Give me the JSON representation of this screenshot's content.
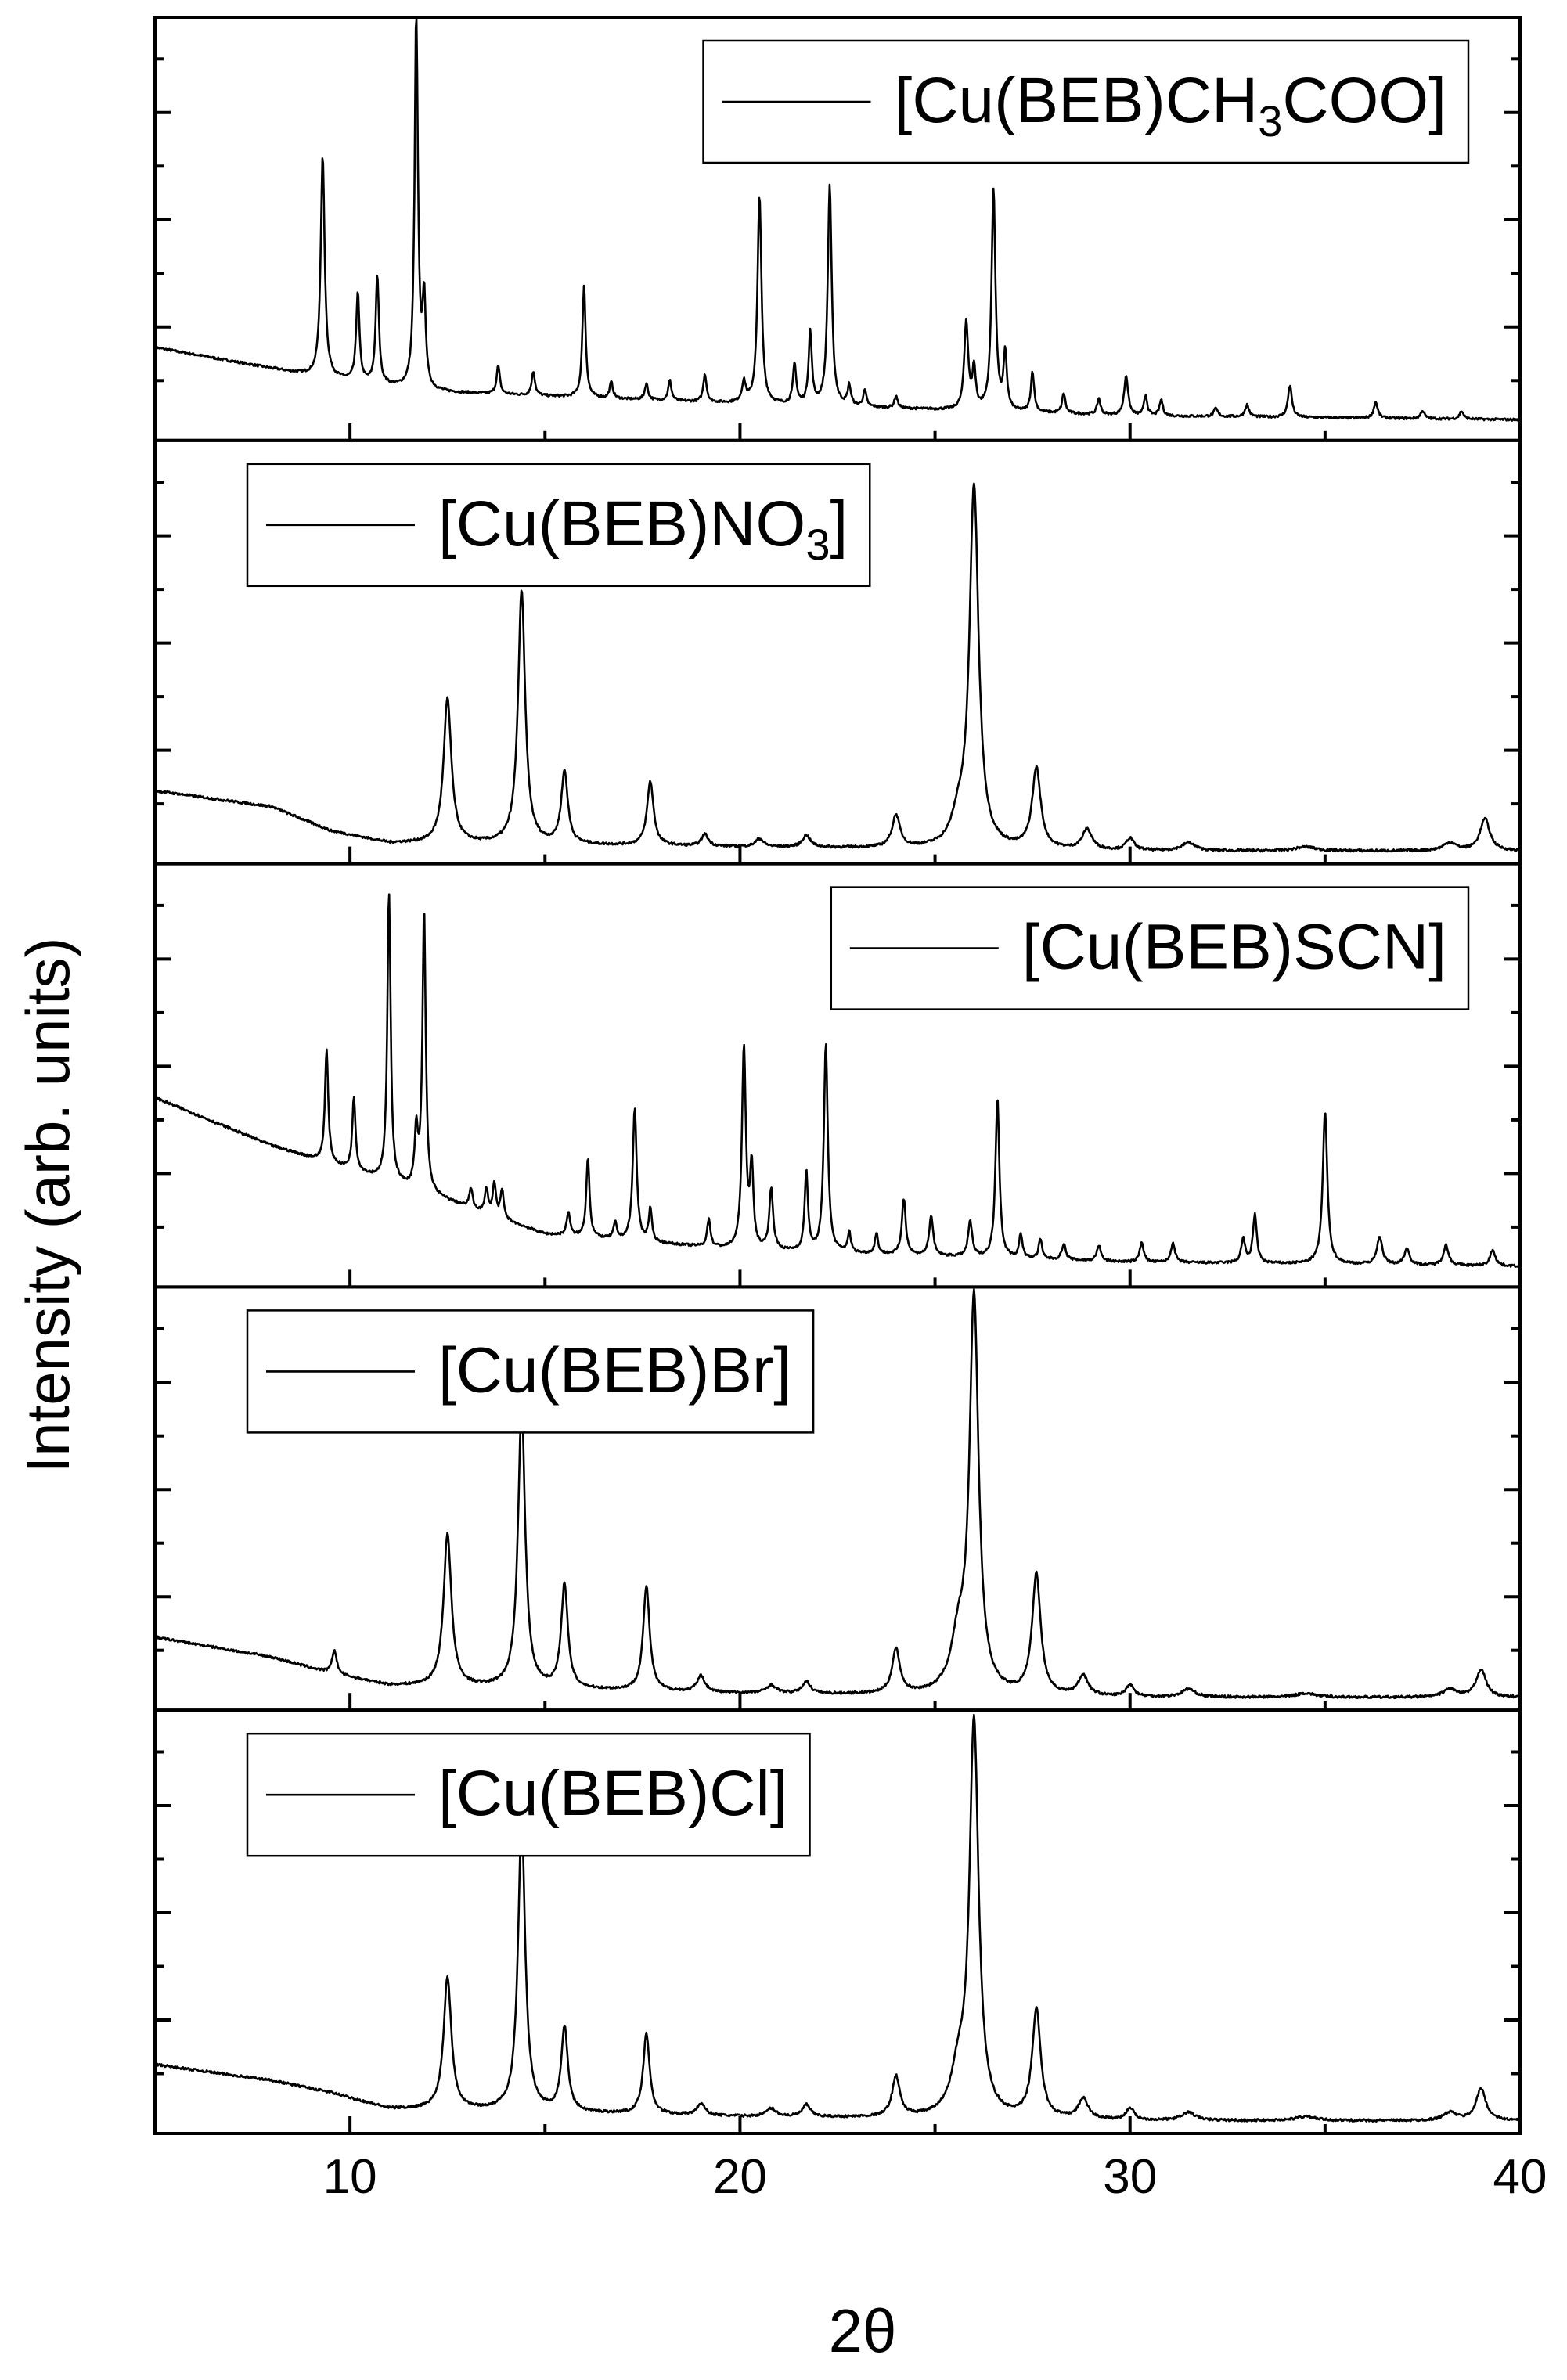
{
  "chart_data": {
    "type": "line",
    "xlabel": "2θ",
    "ylabel": "Intensity (arb. units)",
    "xlim": [
      5,
      40
    ],
    "xticks": [
      10,
      20,
      30,
      40
    ],
    "stacked_panels": true,
    "grid": false,
    "y_tick_labels_shown": false,
    "series": [
      {
        "legend_label": "[Cu(BEB)CH3COO]",
        "legend_parts": [
          "[Cu(BEB)CH",
          "3",
          "COO]"
        ],
        "legend_position": "top-right",
        "baseline": [
          [
            5,
            0.22
          ],
          [
            9,
            0.15
          ],
          [
            12,
            0.11
          ],
          [
            20,
            0.08
          ],
          [
            30,
            0.05
          ],
          [
            40,
            0.04
          ]
        ],
        "peaks": [
          {
            "x": 9.3,
            "h": 0.55,
            "w": 0.06
          },
          {
            "x": 10.2,
            "h": 0.22,
            "w": 0.05
          },
          {
            "x": 10.7,
            "h": 0.27,
            "w": 0.05
          },
          {
            "x": 11.7,
            "h": 0.95,
            "w": 0.05
          },
          {
            "x": 11.9,
            "h": 0.22,
            "w": 0.05
          },
          {
            "x": 13.8,
            "h": 0.07,
            "w": 0.05
          },
          {
            "x": 14.7,
            "h": 0.06,
            "w": 0.05
          },
          {
            "x": 16.0,
            "h": 0.28,
            "w": 0.05
          },
          {
            "x": 16.7,
            "h": 0.04,
            "w": 0.05
          },
          {
            "x": 17.6,
            "h": 0.04,
            "w": 0.05
          },
          {
            "x": 18.2,
            "h": 0.05,
            "w": 0.05
          },
          {
            "x": 19.1,
            "h": 0.07,
            "w": 0.05
          },
          {
            "x": 20.1,
            "h": 0.05,
            "w": 0.06
          },
          {
            "x": 20.5,
            "h": 0.52,
            "w": 0.06
          },
          {
            "x": 21.4,
            "h": 0.1,
            "w": 0.05
          },
          {
            "x": 21.8,
            "h": 0.18,
            "w": 0.05
          },
          {
            "x": 22.3,
            "h": 0.55,
            "w": 0.06
          },
          {
            "x": 22.8,
            "h": 0.05,
            "w": 0.05
          },
          {
            "x": 23.2,
            "h": 0.04,
            "w": 0.05
          },
          {
            "x": 24.0,
            "h": 0.03,
            "w": 0.05
          },
          {
            "x": 25.8,
            "h": 0.22,
            "w": 0.06
          },
          {
            "x": 26.0,
            "h": 0.1,
            "w": 0.05
          },
          {
            "x": 26.5,
            "h": 0.55,
            "w": 0.06
          },
          {
            "x": 26.8,
            "h": 0.14,
            "w": 0.05
          },
          {
            "x": 27.5,
            "h": 0.1,
            "w": 0.05
          },
          {
            "x": 28.3,
            "h": 0.05,
            "w": 0.05
          },
          {
            "x": 29.2,
            "h": 0.04,
            "w": 0.05
          },
          {
            "x": 29.9,
            "h": 0.1,
            "w": 0.06
          },
          {
            "x": 30.4,
            "h": 0.05,
            "w": 0.05
          },
          {
            "x": 30.8,
            "h": 0.04,
            "w": 0.05
          },
          {
            "x": 32.2,
            "h": 0.02,
            "w": 0.06
          },
          {
            "x": 33.0,
            "h": 0.03,
            "w": 0.06
          },
          {
            "x": 34.1,
            "h": 0.08,
            "w": 0.06
          },
          {
            "x": 36.3,
            "h": 0.04,
            "w": 0.06
          },
          {
            "x": 37.5,
            "h": 0.02,
            "w": 0.06
          },
          {
            "x": 38.5,
            "h": 0.02,
            "w": 0.06
          }
        ]
      },
      {
        "legend_label": "[Cu(BEB)NO3]",
        "legend_parts": [
          "[Cu(BEB)NO",
          "3",
          "]"
        ],
        "legend_position": "top-left",
        "baseline": [
          [
            5,
            0.17
          ],
          [
            8,
            0.13
          ],
          [
            9.5,
            0.07
          ],
          [
            11,
            0.04
          ],
          [
            20,
            0.03
          ],
          [
            30,
            0.02
          ],
          [
            40,
            0.02
          ]
        ],
        "peaks": [
          {
            "x": 12.5,
            "h": 0.36,
            "w": 0.12
          },
          {
            "x": 14.4,
            "h": 0.63,
            "w": 0.11
          },
          {
            "x": 15.5,
            "h": 0.18,
            "w": 0.1
          },
          {
            "x": 17.7,
            "h": 0.16,
            "w": 0.1
          },
          {
            "x": 19.1,
            "h": 0.03,
            "w": 0.1
          },
          {
            "x": 20.5,
            "h": 0.02,
            "w": 0.12
          },
          {
            "x": 21.7,
            "h": 0.03,
            "w": 0.12
          },
          {
            "x": 24.0,
            "h": 0.08,
            "w": 0.12
          },
          {
            "x": 25.6,
            "h": 0.06,
            "w": 0.2
          },
          {
            "x": 26.0,
            "h": 0.9,
            "w": 0.14
          },
          {
            "x": 27.6,
            "h": 0.2,
            "w": 0.13
          },
          {
            "x": 28.9,
            "h": 0.05,
            "w": 0.15
          },
          {
            "x": 30.0,
            "h": 0.03,
            "w": 0.12
          },
          {
            "x": 31.5,
            "h": 0.02,
            "w": 0.2
          },
          {
            "x": 34.5,
            "h": 0.01,
            "w": 0.3
          },
          {
            "x": 38.2,
            "h": 0.02,
            "w": 0.2
          },
          {
            "x": 39.1,
            "h": 0.08,
            "w": 0.15
          }
        ]
      },
      {
        "legend_label": "[Cu(BEB)SCN]",
        "legend_parts": [
          "[Cu(BEB)SCN]"
        ],
        "legend_position": "top-right",
        "baseline": [
          [
            5,
            0.46
          ],
          [
            8,
            0.34
          ],
          [
            10,
            0.28
          ],
          [
            12,
            0.22
          ],
          [
            15,
            0.12
          ],
          [
            20,
            0.08
          ],
          [
            30,
            0.05
          ],
          [
            40,
            0.04
          ]
        ],
        "peaks": [
          {
            "x": 9.4,
            "h": 0.28,
            "w": 0.05
          },
          {
            "x": 10.1,
            "h": 0.18,
            "w": 0.05
          },
          {
            "x": 11.0,
            "h": 0.72,
            "w": 0.05
          },
          {
            "x": 11.7,
            "h": 0.14,
            "w": 0.05
          },
          {
            "x": 11.9,
            "h": 0.7,
            "w": 0.05
          },
          {
            "x": 13.1,
            "h": 0.05,
            "w": 0.05
          },
          {
            "x": 13.5,
            "h": 0.06,
            "w": 0.05
          },
          {
            "x": 13.7,
            "h": 0.08,
            "w": 0.05
          },
          {
            "x": 13.9,
            "h": 0.07,
            "w": 0.05
          },
          {
            "x": 15.6,
            "h": 0.06,
            "w": 0.05
          },
          {
            "x": 16.1,
            "h": 0.2,
            "w": 0.05
          },
          {
            "x": 16.8,
            "h": 0.04,
            "w": 0.05
          },
          {
            "x": 17.3,
            "h": 0.33,
            "w": 0.06
          },
          {
            "x": 17.7,
            "h": 0.08,
            "w": 0.05
          },
          {
            "x": 19.2,
            "h": 0.07,
            "w": 0.05
          },
          {
            "x": 20.1,
            "h": 0.5,
            "w": 0.06
          },
          {
            "x": 20.3,
            "h": 0.2,
            "w": 0.05
          },
          {
            "x": 20.8,
            "h": 0.15,
            "w": 0.06
          },
          {
            "x": 21.7,
            "h": 0.2,
            "w": 0.05
          },
          {
            "x": 22.2,
            "h": 0.52,
            "w": 0.06
          },
          {
            "x": 22.8,
            "h": 0.05,
            "w": 0.05
          },
          {
            "x": 23.5,
            "h": 0.05,
            "w": 0.05
          },
          {
            "x": 24.2,
            "h": 0.14,
            "w": 0.06
          },
          {
            "x": 24.9,
            "h": 0.1,
            "w": 0.06
          },
          {
            "x": 25.9,
            "h": 0.09,
            "w": 0.06
          },
          {
            "x": 26.6,
            "h": 0.4,
            "w": 0.06
          },
          {
            "x": 27.2,
            "h": 0.06,
            "w": 0.05
          },
          {
            "x": 27.7,
            "h": 0.05,
            "w": 0.05
          },
          {
            "x": 28.3,
            "h": 0.04,
            "w": 0.06
          },
          {
            "x": 29.2,
            "h": 0.04,
            "w": 0.06
          },
          {
            "x": 30.3,
            "h": 0.05,
            "w": 0.06
          },
          {
            "x": 31.1,
            "h": 0.05,
            "w": 0.06
          },
          {
            "x": 32.9,
            "h": 0.06,
            "w": 0.06
          },
          {
            "x": 33.2,
            "h": 0.12,
            "w": 0.06
          },
          {
            "x": 35.0,
            "h": 0.38,
            "w": 0.07
          },
          {
            "x": 36.4,
            "h": 0.07,
            "w": 0.08
          },
          {
            "x": 37.1,
            "h": 0.04,
            "w": 0.08
          },
          {
            "x": 38.1,
            "h": 0.05,
            "w": 0.08
          },
          {
            "x": 39.3,
            "h": 0.04,
            "w": 0.08
          }
        ]
      },
      {
        "legend_label": "[Cu(BEB)Br]",
        "legend_parts": [
          "[Cu(BEB)Br]"
        ],
        "legend_position": "top-left",
        "baseline": [
          [
            5,
            0.17
          ],
          [
            8,
            0.12
          ],
          [
            9.5,
            0.08
          ],
          [
            11,
            0.05
          ],
          [
            20,
            0.03
          ],
          [
            30,
            0.02
          ],
          [
            40,
            0.02
          ]
        ],
        "peaks": [
          {
            "x": 9.6,
            "h": 0.06,
            "w": 0.07
          },
          {
            "x": 12.5,
            "h": 0.38,
            "w": 0.12
          },
          {
            "x": 14.4,
            "h": 0.7,
            "w": 0.11
          },
          {
            "x": 15.5,
            "h": 0.26,
            "w": 0.1
          },
          {
            "x": 17.6,
            "h": 0.26,
            "w": 0.1
          },
          {
            "x": 19.0,
            "h": 0.04,
            "w": 0.12
          },
          {
            "x": 20.8,
            "h": 0.02,
            "w": 0.15
          },
          {
            "x": 21.7,
            "h": 0.03,
            "w": 0.12
          },
          {
            "x": 24.0,
            "h": 0.11,
            "w": 0.12
          },
          {
            "x": 25.6,
            "h": 0.12,
            "w": 0.22
          },
          {
            "x": 26.0,
            "h": 0.98,
            "w": 0.14
          },
          {
            "x": 27.6,
            "h": 0.3,
            "w": 0.13
          },
          {
            "x": 28.8,
            "h": 0.05,
            "w": 0.15
          },
          {
            "x": 30.0,
            "h": 0.03,
            "w": 0.12
          },
          {
            "x": 31.5,
            "h": 0.02,
            "w": 0.2
          },
          {
            "x": 34.5,
            "h": 0.01,
            "w": 0.3
          },
          {
            "x": 38.2,
            "h": 0.02,
            "w": 0.2
          },
          {
            "x": 39.0,
            "h": 0.07,
            "w": 0.15
          }
        ]
      },
      {
        "legend_label": "[Cu(BEB)Cl]",
        "legend_parts": [
          "[Cu(BEB)Cl]"
        ],
        "legend_position": "top-left",
        "baseline": [
          [
            5,
            0.16
          ],
          [
            8,
            0.12
          ],
          [
            9.5,
            0.09
          ],
          [
            11,
            0.05
          ],
          [
            20,
            0.03
          ],
          [
            30,
            0.02
          ],
          [
            40,
            0.02
          ]
        ],
        "peaks": [
          {
            "x": 12.5,
            "h": 0.33,
            "w": 0.12
          },
          {
            "x": 14.4,
            "h": 0.72,
            "w": 0.11
          },
          {
            "x": 15.5,
            "h": 0.21,
            "w": 0.1
          },
          {
            "x": 17.6,
            "h": 0.2,
            "w": 0.1
          },
          {
            "x": 19.0,
            "h": 0.03,
            "w": 0.12
          },
          {
            "x": 20.8,
            "h": 0.02,
            "w": 0.15
          },
          {
            "x": 21.7,
            "h": 0.03,
            "w": 0.12
          },
          {
            "x": 24.0,
            "h": 0.1,
            "w": 0.12
          },
          {
            "x": 25.6,
            "h": 0.1,
            "w": 0.22
          },
          {
            "x": 26.0,
            "h": 0.98,
            "w": 0.14
          },
          {
            "x": 27.6,
            "h": 0.27,
            "w": 0.13
          },
          {
            "x": 28.8,
            "h": 0.05,
            "w": 0.15
          },
          {
            "x": 30.0,
            "h": 0.03,
            "w": 0.12
          },
          {
            "x": 31.5,
            "h": 0.02,
            "w": 0.2
          },
          {
            "x": 34.5,
            "h": 0.01,
            "w": 0.3
          },
          {
            "x": 38.2,
            "h": 0.02,
            "w": 0.2
          },
          {
            "x": 39.0,
            "h": 0.08,
            "w": 0.15
          }
        ]
      }
    ]
  }
}
